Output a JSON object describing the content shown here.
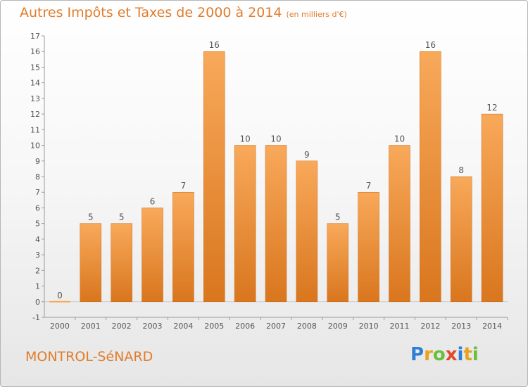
{
  "chart_data": {
    "type": "bar",
    "title": "Autres Impôts et Taxes de 2000 à 2014",
    "subtitle": "(en milliers d'€)",
    "categories": [
      "2000",
      "2001",
      "2002",
      "2003",
      "2004",
      "2005",
      "2006",
      "2007",
      "2008",
      "2009",
      "2010",
      "2011",
      "2012",
      "2013",
      "2014"
    ],
    "values": [
      0,
      5,
      5,
      6,
      7,
      16,
      10,
      10,
      9,
      5,
      7,
      10,
      16,
      8,
      12
    ],
    "ylim": [
      -1,
      17
    ],
    "yticks": [
      -1,
      0,
      1,
      2,
      3,
      4,
      5,
      6,
      7,
      8,
      9,
      10,
      11,
      12,
      13,
      14,
      15,
      16,
      17
    ],
    "grid": false,
    "legend": "none",
    "bar_color_light": "#f8a95a",
    "bar_color_dark": "#d9761e"
  },
  "location": "MONTROL-SéNARD",
  "brand": [
    "P",
    "r",
    "o",
    "x",
    "i",
    "t",
    "i"
  ],
  "colors": {
    "accent": "#e07d2c",
    "axis": "#999999",
    "text": "#555555"
  }
}
